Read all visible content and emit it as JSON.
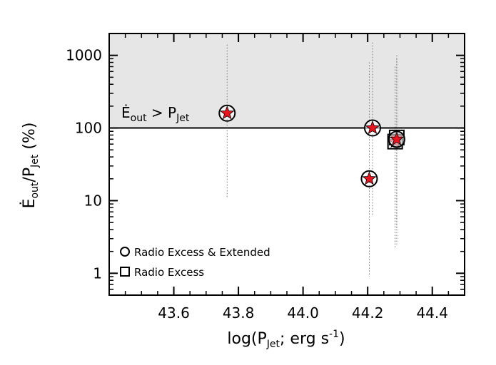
{
  "chart_data": {
    "type": "scatter",
    "xlabel": {
      "pre": "log(P",
      "sub": "Jet",
      "mid": "; erg s",
      "sup": "-1",
      "post": ")"
    },
    "ylabel": {
      "pre": "Ė",
      "sub1": "out",
      "mid": "/P",
      "sub2": "Jet",
      "post": " (%)"
    },
    "xlim": [
      43.4,
      44.5
    ],
    "ylim": [
      0.5,
      2000
    ],
    "yscale": "log",
    "x_ticks": [
      43.6,
      43.8,
      44.0,
      44.2,
      44.4
    ],
    "x_tick_labels": [
      "43.6",
      "43.8",
      "44.0",
      "44.2",
      "44.4"
    ],
    "y_ticks": [
      1,
      10,
      100,
      1000
    ],
    "y_tick_labels": [
      "1",
      "10",
      "100",
      "1000"
    ],
    "shaded_region": {
      "y_from": 100,
      "y_to": 2000,
      "color": "#e6e6e6"
    },
    "reference_line": {
      "y": 100
    },
    "annotation": {
      "pre": "Ė",
      "sub1": "out",
      "mid": " > P",
      "sub2": "Jet"
    },
    "star_color": "#e8141e",
    "legend": [
      {
        "marker": "circle",
        "label": "Radio Excess & Extended"
      },
      {
        "marker": "square",
        "label": "Radio Excess"
      }
    ],
    "points": [
      {
        "x": 43.765,
        "y": 160,
        "marker": "circle",
        "err_low": 11,
        "err_high": 1400
      },
      {
        "x": 44.215,
        "y": 100,
        "marker": "circle",
        "err_low": 6,
        "err_high": 1500
      },
      {
        "x": 44.205,
        "y": 20,
        "marker": "circle",
        "err_low": 0.9,
        "err_high": 800
      },
      {
        "x": 44.29,
        "y": 74,
        "marker": "square",
        "err_low": 4,
        "err_high": 900
      },
      {
        "x": 44.285,
        "y": 65,
        "marker": "square",
        "err_low": 2.2,
        "err_high": 700
      },
      {
        "x": 44.29,
        "y": 70,
        "marker": "circle",
        "err_low": 2.5,
        "err_high": 1000
      }
    ]
  }
}
